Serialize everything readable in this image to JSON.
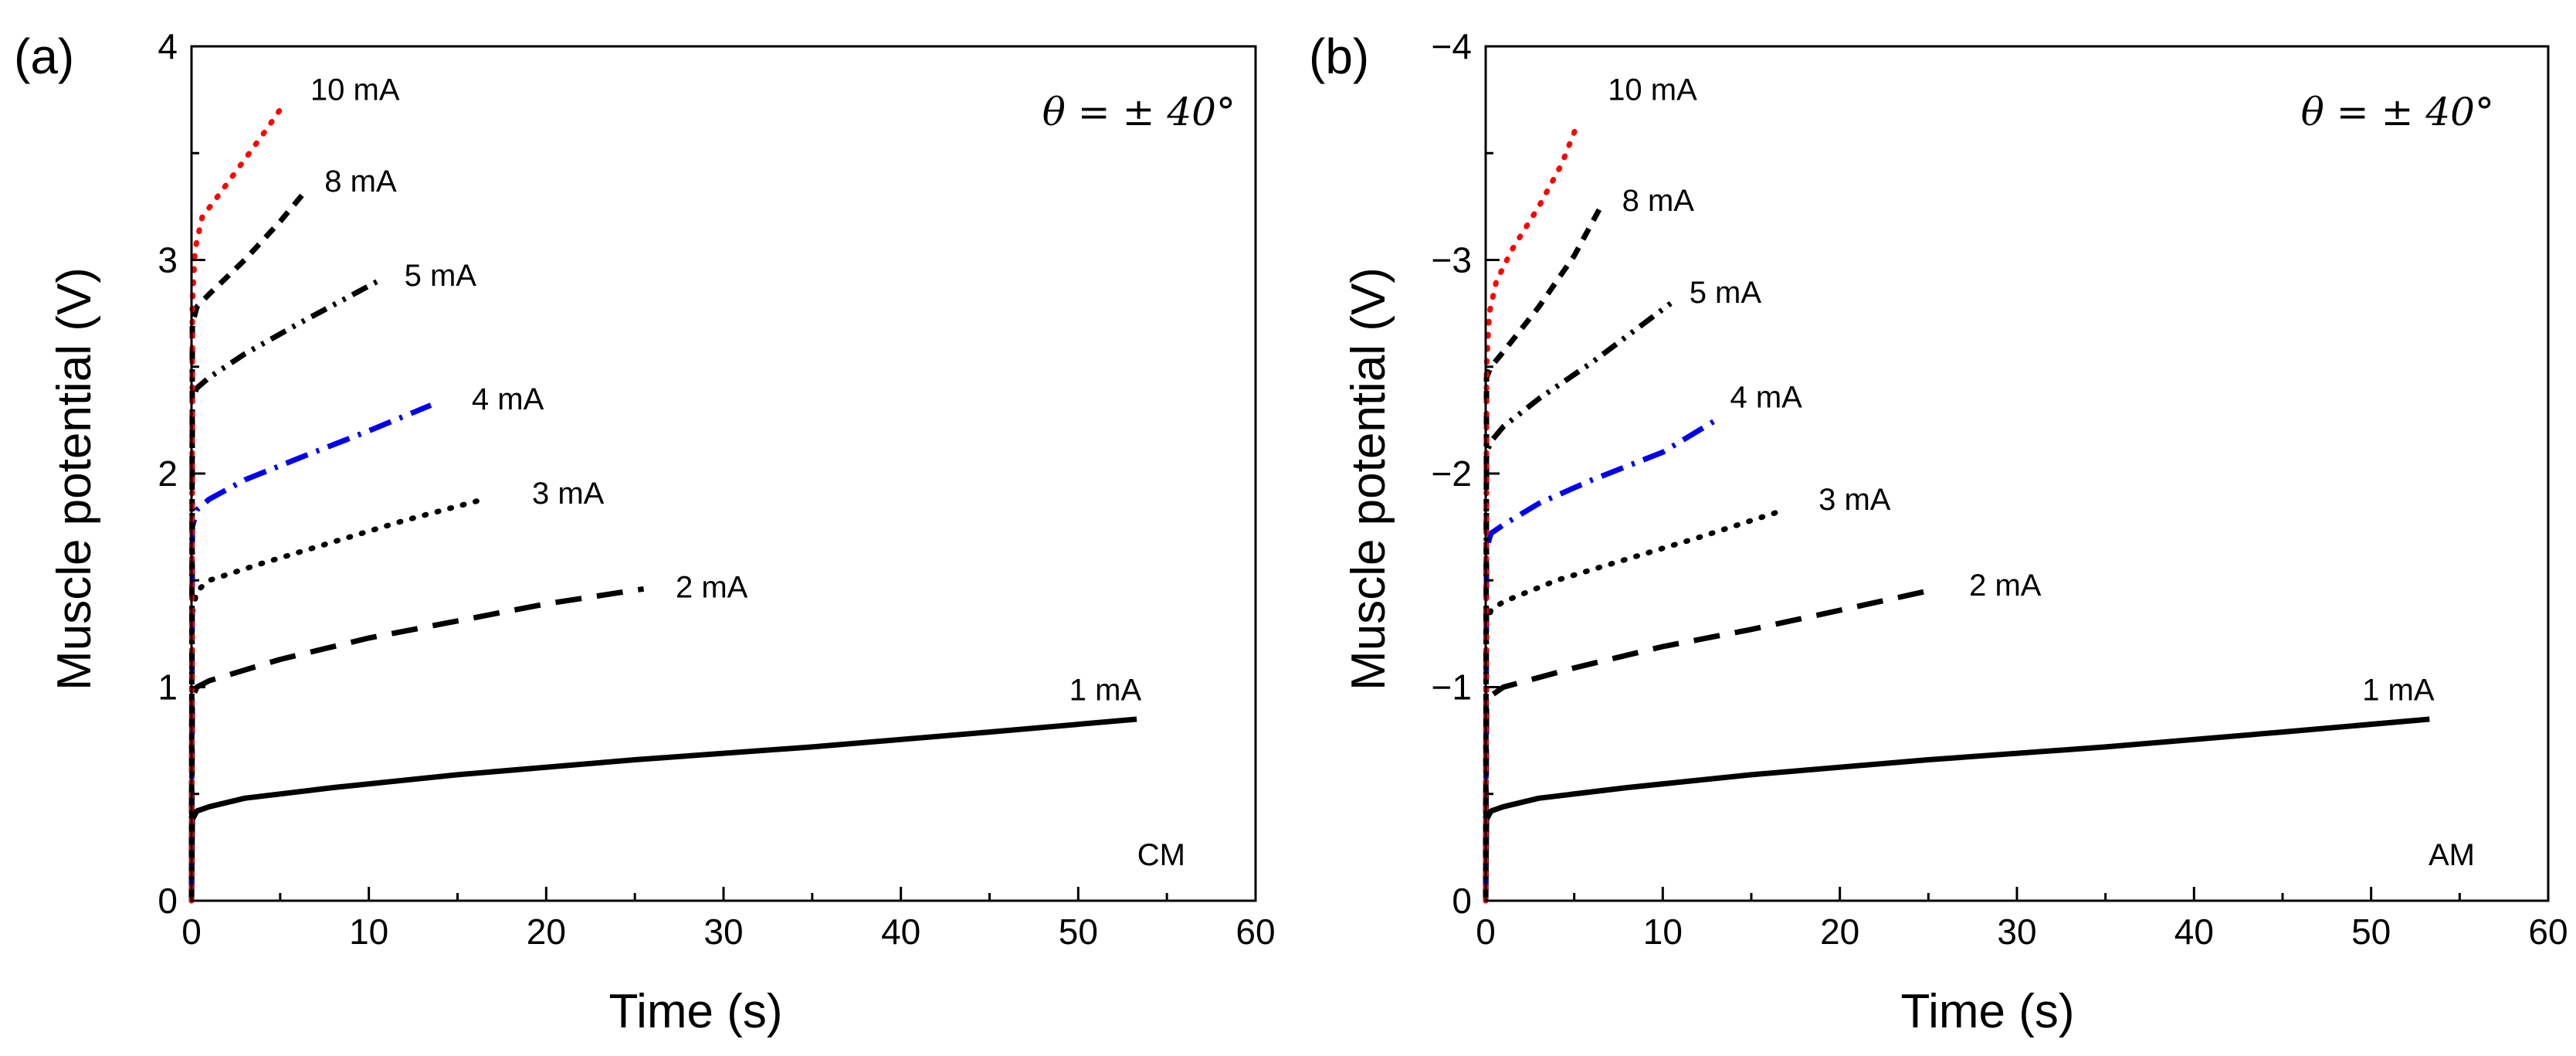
{
  "chart_data": [
    {
      "type": "line",
      "panel_label": "(a)",
      "xlabel": "Time (s)",
      "ylabel": "Muscle potential (V)",
      "xlim": [
        0,
        60
      ],
      "ylim": [
        0,
        4
      ],
      "y_direction": "up",
      "x_ticks": [
        "0",
        "10",
        "20",
        "30",
        "40",
        "50",
        "60"
      ],
      "y_ticks": [
        "0",
        "1",
        "2",
        "3",
        "4"
      ],
      "annotation": "θ = ± 40°",
      "corner_label": "CM",
      "series": [
        {
          "name": "1 mA",
          "color": "#000000",
          "style": "solid",
          "x": [
            0,
            0.05,
            0.3,
            1,
            3,
            8,
            15,
            25,
            35,
            45,
            53.3
          ],
          "y": [
            0,
            0.38,
            0.42,
            0.44,
            0.48,
            0.53,
            0.59,
            0.66,
            0.72,
            0.79,
            0.85
          ],
          "label_xy": [
            49.5,
            0.99
          ]
        },
        {
          "name": "2 mA",
          "color": "#000000",
          "style": "dashed",
          "x": [
            0,
            0.05,
            0.3,
            1,
            5,
            10,
            15,
            20,
            25.5
          ],
          "y": [
            0,
            0.95,
            1.0,
            1.03,
            1.13,
            1.23,
            1.31,
            1.39,
            1.46
          ],
          "label_xy": [
            27.3,
            1.47
          ]
        },
        {
          "name": "3 mA",
          "color": "#000000",
          "style": "dotted",
          "x": [
            0,
            0.05,
            0.3,
            1,
            4,
            8,
            12,
            16.5
          ],
          "y": [
            0,
            1.35,
            1.45,
            1.5,
            1.58,
            1.68,
            1.78,
            1.88
          ],
          "label_xy": [
            19.2,
            1.91
          ]
        },
        {
          "name": "4 mA",
          "color": "#0000ee",
          "style": "dashdot",
          "x": [
            0,
            0.05,
            0.3,
            1,
            3,
            6,
            10,
            13.5
          ],
          "y": [
            0,
            1.75,
            1.83,
            1.88,
            1.97,
            2.07,
            2.2,
            2.32
          ],
          "label_xy": [
            15.8,
            2.35
          ]
        },
        {
          "name": "5 mA",
          "color": "#000000",
          "style": "dashdotdot",
          "x": [
            0,
            0.05,
            0.3,
            1,
            3,
            6,
            10.5
          ],
          "y": [
            0,
            2.35,
            2.4,
            2.45,
            2.56,
            2.7,
            2.9
          ],
          "label_xy": [
            12,
            2.93
          ]
        },
        {
          "name": "8 mA",
          "color": "#000000",
          "style": "shortdash",
          "x": [
            0,
            0.05,
            0.3,
            1,
            3,
            5,
            6.5
          ],
          "y": [
            0,
            2.7,
            2.78,
            2.84,
            3.0,
            3.18,
            3.33
          ],
          "label_xy": [
            7.5,
            3.37
          ]
        },
        {
          "name": "10 mA",
          "color": "#ff0000",
          "style": "dotted",
          "x": [
            0,
            0.05,
            0.2,
            0.6,
            1.5,
            3,
            4.3,
            5.3
          ],
          "y": [
            0,
            2.8,
            3.05,
            3.2,
            3.3,
            3.47,
            3.62,
            3.74
          ],
          "label_xy": [
            6.7,
            3.8
          ]
        }
      ]
    },
    {
      "type": "line",
      "panel_label": "(b)",
      "xlabel": "Time (s)",
      "ylabel": "Muscle potential (V)",
      "xlim": [
        0,
        60
      ],
      "ylim": [
        0,
        -4
      ],
      "y_direction": "down",
      "x_ticks": [
        "0",
        "10",
        "20",
        "30",
        "40",
        "50",
        "60"
      ],
      "y_ticks": [
        "0",
        "−1",
        "−2",
        "−3",
        "−4"
      ],
      "annotation": "θ = ± 40°",
      "corner_label": "AM",
      "series": [
        {
          "name": "1 mA",
          "color": "#000000",
          "style": "solid",
          "x": [
            0,
            0.05,
            0.3,
            1,
            3,
            8,
            15,
            25,
            35,
            45,
            53.3
          ],
          "y": [
            0,
            -0.38,
            -0.42,
            -0.44,
            -0.48,
            -0.53,
            -0.59,
            -0.66,
            -0.72,
            -0.79,
            -0.85
          ],
          "label_xy": [
            49.5,
            -0.99
          ]
        },
        {
          "name": "2 mA",
          "color": "#000000",
          "style": "dashed",
          "x": [
            0,
            0.05,
            0.3,
            1,
            5,
            10,
            15,
            20,
            25.5
          ],
          "y": [
            0,
            -0.9,
            -0.96,
            -1.0,
            -1.09,
            -1.19,
            -1.27,
            -1.36,
            -1.46
          ],
          "label_xy": [
            27.3,
            -1.48
          ]
        },
        {
          "name": "3 mA",
          "color": "#000000",
          "style": "dotted",
          "x": [
            0,
            0.05,
            0.3,
            1,
            4,
            8,
            12,
            16.5
          ],
          "y": [
            0,
            -1.3,
            -1.36,
            -1.4,
            -1.5,
            -1.6,
            -1.7,
            -1.82
          ],
          "label_xy": [
            18.8,
            -1.88
          ]
        },
        {
          "name": "4 mA",
          "color": "#0000ee",
          "style": "dashdot",
          "x": [
            0,
            0.05,
            0.3,
            1,
            3,
            6,
            10,
            13.2
          ],
          "y": [
            0,
            -1.65,
            -1.72,
            -1.76,
            -1.86,
            -1.97,
            -2.1,
            -2.26
          ],
          "label_xy": [
            13.8,
            -2.36
          ]
        },
        {
          "name": "5 mA",
          "color": "#000000",
          "style": "dashdotdot",
          "x": [
            0,
            0.05,
            0.3,
            1,
            3,
            6,
            10.5
          ],
          "y": [
            0,
            -2.1,
            -2.15,
            -2.22,
            -2.35,
            -2.52,
            -2.8
          ],
          "label_xy": [
            11.5,
            -2.85
          ]
        },
        {
          "name": "8 mA",
          "color": "#000000",
          "style": "shortdash",
          "x": [
            0,
            0.05,
            0.3,
            1,
            3,
            5,
            6.5
          ],
          "y": [
            0,
            -2.45,
            -2.5,
            -2.57,
            -2.78,
            -3.02,
            -3.25
          ],
          "label_xy": [
            7.7,
            -3.28
          ]
        },
        {
          "name": "10 mA",
          "color": "#ff0000",
          "style": "dotted",
          "x": [
            0,
            0.05,
            0.2,
            0.6,
            1.5,
            3,
            4.3,
            5.2
          ],
          "y": [
            0,
            -2.5,
            -2.75,
            -2.9,
            -3.05,
            -3.25,
            -3.45,
            -3.64
          ],
          "label_xy": [
            6.9,
            -3.8
          ]
        }
      ]
    }
  ]
}
